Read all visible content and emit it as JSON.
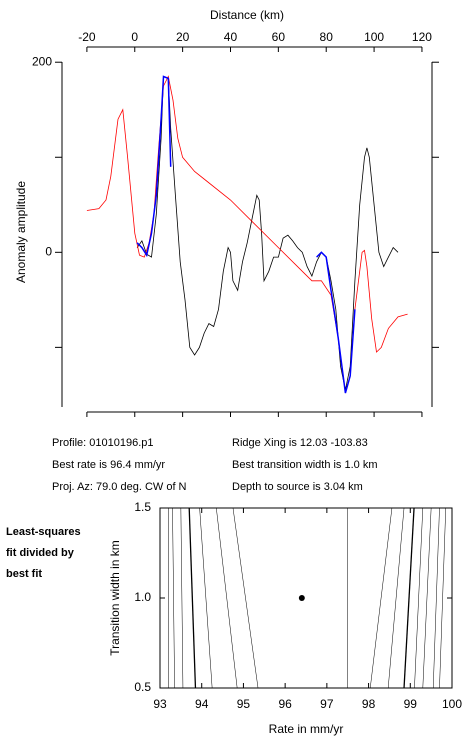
{
  "chart_data": [
    {
      "type": "line",
      "x_label": "Distance (km)",
      "y_label": "Anomaly amplitude",
      "xlim": [
        -30.4,
        124.2
      ],
      "ylim": [
        -168,
        216
      ],
      "xticks": [
        -20,
        0,
        20,
        40,
        60,
        80,
        100,
        120
      ],
      "yticks": [
        0,
        200
      ],
      "yminor": [
        -100,
        100
      ],
      "series": [
        {
          "color": "#000000",
          "x": [
            1,
            3,
            5,
            7,
            9,
            11,
            12,
            14,
            15,
            17,
            19,
            21,
            23,
            25,
            27,
            29,
            31,
            33,
            35,
            37,
            39,
            40,
            41,
            43,
            45,
            47,
            49,
            51,
            52,
            53,
            54,
            56,
            58,
            60,
            62,
            64,
            66,
            68,
            70,
            72,
            74,
            76,
            78,
            80,
            82,
            84,
            86,
            88,
            90,
            92,
            94,
            96,
            97,
            98,
            100,
            102,
            104,
            106,
            108,
            110
          ],
          "values": [
            5,
            12,
            -2,
            -5,
            40,
            120,
            185,
            183,
            130,
            60,
            -10,
            -50,
            -100,
            -108,
            -100,
            -85,
            -75,
            -78,
            -60,
            -20,
            5,
            0,
            -30,
            -40,
            -10,
            10,
            35,
            60,
            55,
            20,
            -30,
            -20,
            -5,
            -5,
            15,
            18,
            12,
            5,
            0,
            -15,
            -25,
            -10,
            0,
            -5,
            -30,
            -60,
            -120,
            -145,
            -120,
            -30,
            50,
            100,
            110,
            100,
            50,
            0,
            -15,
            -5,
            5,
            0
          ]
        },
        {
          "color": "#ff0000",
          "x": [
            -20,
            -15,
            -12,
            -10,
            -7,
            -5,
            -3,
            0,
            2,
            4,
            6,
            8,
            10,
            12,
            14,
            16,
            18,
            20,
            25,
            30,
            40,
            50,
            60,
            70,
            74,
            78,
            82,
            85,
            88,
            90,
            92,
            94,
            95,
            96,
            97,
            99,
            101,
            103,
            106,
            110,
            114
          ],
          "values": [
            44,
            46,
            55,
            80,
            140,
            150,
            100,
            20,
            -3,
            -5,
            10,
            40,
            110,
            175,
            185,
            160,
            120,
            100,
            85,
            75,
            55,
            30,
            5,
            -20,
            -30,
            -30,
            -45,
            -90,
            -148,
            -130,
            -60,
            -20,
            0,
            2,
            -15,
            -70,
            -105,
            -100,
            -80,
            -68,
            -65
          ]
        },
        {
          "color": "#0000ff",
          "x": [
            1,
            3,
            5,
            7,
            9,
            11,
            12,
            14,
            15,
            null,
            76,
            78,
            80,
            82,
            85,
            88,
            90,
            92
          ],
          "values": [
            10,
            5,
            -3,
            20,
            60,
            140,
            185,
            183,
            90,
            null,
            -5,
            0,
            -5,
            -40,
            -90,
            -148,
            -130,
            -60
          ]
        }
      ]
    },
    {
      "type": "contour",
      "x_label": "Rate in mm/yr",
      "y_label": "Transition width in km",
      "xlim": [
        93,
        100
      ],
      "ylim": [
        0.5,
        1.5
      ],
      "xticks": [
        93,
        94,
        95,
        96,
        97,
        98,
        99,
        100
      ],
      "yticks": [
        0.5,
        {
          "value": 1,
          "label": "1.0"
        },
        1.5
      ],
      "contours": [
        [
          93.2,
          93.2
        ],
        [
          93.35,
          93.3
        ],
        [
          93.55,
          93.5
        ],
        [
          93.85,
          93.7
        ],
        [
          94.25,
          93.95
        ],
        [
          94.85,
          94.35
        ],
        [
          95.35,
          94.75
        ],
        [
          97.5,
          97.5
        ],
        [
          98.04,
          98.56
        ],
        [
          98.47,
          98.85
        ],
        [
          98.85,
          99.09
        ],
        [
          99.1,
          99.3
        ],
        [
          99.3,
          99.5
        ],
        [
          99.55,
          99.7
        ],
        [
          99.7,
          99.85
        ]
      ],
      "best": {
        "x": 96.4,
        "y": 1.0
      }
    }
  ],
  "info": {
    "left": [
      "Profile: 01010196.p1",
      "Best rate is 96.4 mm/yr",
      "Proj. Az: 79.0 deg. CW of N"
    ],
    "right": [
      "Ridge Xing is 12.03 -103.83",
      "Best transition width is 1.0 km",
      "Depth to source is  3.04 km"
    ]
  },
  "note": [
    "Least-squares",
    "fit divided by",
    "best fit"
  ]
}
